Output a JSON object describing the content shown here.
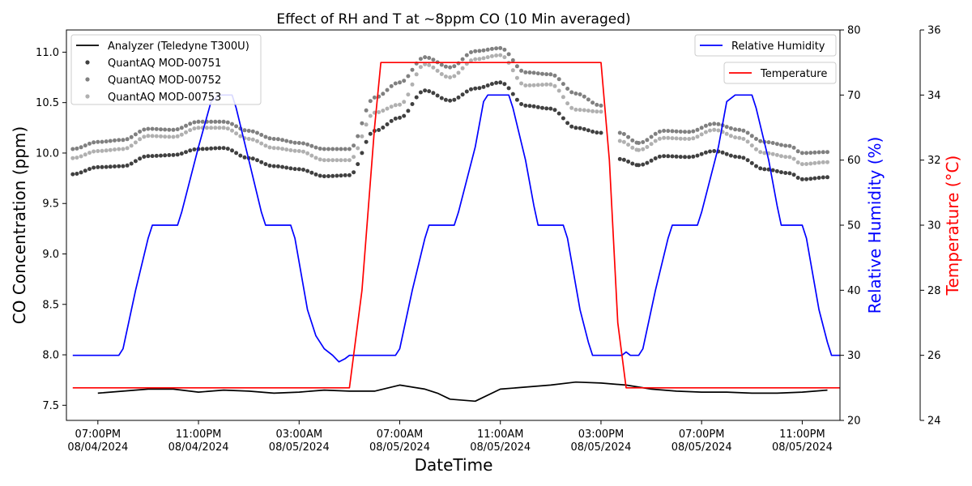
{
  "chart_data": {
    "type": "line",
    "title": "Effect of RH and T at ~8ppm CO (10 Min averaged)",
    "xlabel": "DateTime",
    "ylabel": "CO Concentration (ppm)",
    "y2label": "Relative Humidity (%)",
    "y3label": "Temperature (°C)",
    "xlim": [
      "2024-08-04 17:45",
      "2024-08-06 00:30"
    ],
    "ylim": [
      7.35,
      11.22
    ],
    "y2lim": [
      20,
      80
    ],
    "y3lim": [
      24,
      36
    ],
    "x_ticks": [
      {
        "line1": "07:00PM",
        "line2": "08/04/2024",
        "value": "2024-08-04 19:00"
      },
      {
        "line1": "11:00PM",
        "line2": "08/04/2024",
        "value": "2024-08-04 23:00"
      },
      {
        "line1": "03:00AM",
        "line2": "08/05/2024",
        "value": "2024-08-05 03:00"
      },
      {
        "line1": "07:00AM",
        "line2": "08/05/2024",
        "value": "2024-08-05 07:00"
      },
      {
        "line1": "11:00AM",
        "line2": "08/05/2024",
        "value": "2024-08-05 11:00"
      },
      {
        "line1": "03:00PM",
        "line2": "08/05/2024",
        "value": "2024-08-05 15:00"
      },
      {
        "line1": "07:00PM",
        "line2": "08/05/2024",
        "value": "2024-08-05 19:00"
      },
      {
        "line1": "11:00PM",
        "line2": "08/05/2024",
        "value": "2024-08-05 23:00"
      }
    ],
    "y_ticks": [
      "7.5",
      "8.0",
      "8.5",
      "9.0",
      "9.5",
      "10.0",
      "10.5",
      "11.0"
    ],
    "y2_ticks": [
      "20",
      "30",
      "40",
      "50",
      "60",
      "70",
      "80"
    ],
    "y3_ticks": [
      "24",
      "26",
      "28",
      "30",
      "32",
      "34",
      "36"
    ],
    "grid": false,
    "legend_left": {
      "placement": "upper-left",
      "entries": [
        "Analyzer (Teledyne T300U)",
        "QuantAQ MOD-00751",
        "QuantAQ MOD-00752",
        "QuantAQ MOD-00753"
      ]
    },
    "legend_rh": {
      "placement": "upper-right",
      "entries": [
        "Relative Humidity"
      ]
    },
    "legend_temp": {
      "placement": "upper-right",
      "entries": [
        "Temperature"
      ]
    },
    "series": [
      {
        "name": "Analyzer (Teledyne T300U)",
        "style": "line",
        "axis": "co",
        "color": "#000000",
        "points": [
          [
            "2024-08-04 19:00",
            7.62
          ],
          [
            "2024-08-04 20:00",
            7.64
          ],
          [
            "2024-08-04 21:00",
            7.66
          ],
          [
            "2024-08-04 22:00",
            7.66
          ],
          [
            "2024-08-04 23:00",
            7.63
          ],
          [
            "2024-08-05 00:00",
            7.65
          ],
          [
            "2024-08-05 01:00",
            7.64
          ],
          [
            "2024-08-05 02:00",
            7.62
          ],
          [
            "2024-08-05 03:00",
            7.63
          ],
          [
            "2024-08-05 04:00",
            7.65
          ],
          [
            "2024-08-05 05:00",
            7.64
          ],
          [
            "2024-08-05 06:00",
            7.64
          ],
          [
            "2024-08-05 07:00",
            7.7
          ],
          [
            "2024-08-05 08:00",
            7.66
          ],
          [
            "2024-08-05 08:30",
            7.62
          ],
          [
            "2024-08-05 09:00",
            7.56
          ],
          [
            "2024-08-05 10:00",
            7.54
          ],
          [
            "2024-08-05 11:00",
            7.66
          ],
          [
            "2024-08-05 12:00",
            7.68
          ],
          [
            "2024-08-05 13:00",
            7.7
          ],
          [
            "2024-08-05 14:00",
            7.73
          ],
          [
            "2024-08-05 15:00",
            7.72
          ],
          [
            "2024-08-05 16:00",
            7.7
          ],
          [
            "2024-08-05 17:00",
            7.66
          ],
          [
            "2024-08-05 18:00",
            7.64
          ],
          [
            "2024-08-05 19:00",
            7.63
          ],
          [
            "2024-08-05 20:00",
            7.63
          ],
          [
            "2024-08-05 21:00",
            7.62
          ],
          [
            "2024-08-05 22:00",
            7.62
          ],
          [
            "2024-08-05 23:00",
            7.63
          ],
          [
            "2024-08-06 00:00",
            7.65
          ]
        ]
      },
      {
        "name": "QuantAQ MOD-00751",
        "style": "dots",
        "axis": "co",
        "color": "#404040",
        "points": [
          [
            "2024-08-04 18:00",
            9.79
          ],
          [
            "2024-08-04 19:00",
            9.86
          ],
          [
            "2024-08-04 20:00",
            9.87
          ],
          [
            "2024-08-04 21:00",
            9.97
          ],
          [
            "2024-08-04 22:00",
            9.98
          ],
          [
            "2024-08-04 23:00",
            10.04
          ],
          [
            "2024-08-05 00:00",
            10.05
          ],
          [
            "2024-08-05 01:00",
            9.95
          ],
          [
            "2024-08-05 02:00",
            9.87
          ],
          [
            "2024-08-05 03:00",
            9.84
          ],
          [
            "2024-08-05 04:00",
            9.77
          ],
          [
            "2024-08-05 05:00",
            9.78
          ],
          [
            "2024-08-05 06:00",
            10.22
          ],
          [
            "2024-08-05 07:00",
            10.35
          ],
          [
            "2024-08-05 08:00",
            10.62
          ],
          [
            "2024-08-05 09:00",
            10.52
          ],
          [
            "2024-08-05 10:00",
            10.64
          ],
          [
            "2024-08-05 11:00",
            10.7
          ],
          [
            "2024-08-05 12:00",
            10.47
          ],
          [
            "2024-08-05 13:00",
            10.44
          ],
          [
            "2024-08-05 14:00",
            10.25
          ],
          [
            "2024-08-05 15:00",
            10.2
          ]
        ]
      },
      {
        "name": "QuantAQ MOD-00751 b",
        "style": "dots",
        "axis": "co",
        "color": "#404040",
        "points": [
          [
            "2024-08-05 15:45",
            9.94
          ],
          [
            "2024-08-05 16:30",
            9.88
          ],
          [
            "2024-08-05 17:30",
            9.97
          ],
          [
            "2024-08-05 18:30",
            9.96
          ],
          [
            "2024-08-05 19:30",
            10.02
          ],
          [
            "2024-08-05 20:30",
            9.96
          ],
          [
            "2024-08-05 21:30",
            9.84
          ],
          [
            "2024-08-05 22:30",
            9.8
          ],
          [
            "2024-08-05 23:00",
            9.74
          ],
          [
            "2024-08-06 00:00",
            9.76
          ]
        ]
      },
      {
        "name": "QuantAQ MOD-00752",
        "style": "dots",
        "axis": "co",
        "color": "#808080",
        "points": [
          [
            "2024-08-04 18:00",
            10.04
          ],
          [
            "2024-08-04 19:00",
            10.11
          ],
          [
            "2024-08-04 20:00",
            10.13
          ],
          [
            "2024-08-04 21:00",
            10.24
          ],
          [
            "2024-08-04 22:00",
            10.23
          ],
          [
            "2024-08-04 23:00",
            10.31
          ],
          [
            "2024-08-05 00:00",
            10.31
          ],
          [
            "2024-08-05 01:00",
            10.22
          ],
          [
            "2024-08-05 02:00",
            10.14
          ],
          [
            "2024-08-05 03:00",
            10.1
          ],
          [
            "2024-08-05 04:00",
            10.04
          ],
          [
            "2024-08-05 05:00",
            10.04
          ],
          [
            "2024-08-05 06:00",
            10.55
          ],
          [
            "2024-08-05 07:00",
            10.7
          ],
          [
            "2024-08-05 08:00",
            10.95
          ],
          [
            "2024-08-05 09:00",
            10.85
          ],
          [
            "2024-08-05 10:00",
            11.01
          ],
          [
            "2024-08-05 11:00",
            11.04
          ],
          [
            "2024-08-05 12:00",
            10.8
          ],
          [
            "2024-08-05 13:00",
            10.78
          ],
          [
            "2024-08-05 14:00",
            10.59
          ],
          [
            "2024-08-05 15:00",
            10.47
          ]
        ]
      },
      {
        "name": "QuantAQ MOD-00752 b",
        "style": "dots",
        "axis": "co",
        "color": "#808080",
        "points": [
          [
            "2024-08-05 15:45",
            10.2
          ],
          [
            "2024-08-05 16:30",
            10.1
          ],
          [
            "2024-08-05 17:30",
            10.22
          ],
          [
            "2024-08-05 18:30",
            10.21
          ],
          [
            "2024-08-05 19:30",
            10.29
          ],
          [
            "2024-08-05 20:30",
            10.23
          ],
          [
            "2024-08-05 21:30",
            10.11
          ],
          [
            "2024-08-05 22:30",
            10.07
          ],
          [
            "2024-08-05 23:00",
            10.0
          ],
          [
            "2024-08-06 00:00",
            10.01
          ]
        ]
      },
      {
        "name": "QuantAQ MOD-00753",
        "style": "dots",
        "axis": "co",
        "color": "#b0b0b0",
        "points": [
          [
            "2024-08-04 18:00",
            9.95
          ],
          [
            "2024-08-04 19:00",
            10.02
          ],
          [
            "2024-08-04 20:00",
            10.04
          ],
          [
            "2024-08-04 21:00",
            10.17
          ],
          [
            "2024-08-04 22:00",
            10.16
          ],
          [
            "2024-08-04 23:00",
            10.25
          ],
          [
            "2024-08-05 00:00",
            10.25
          ],
          [
            "2024-08-05 01:00",
            10.14
          ],
          [
            "2024-08-05 02:00",
            10.05
          ],
          [
            "2024-08-05 03:00",
            10.02
          ],
          [
            "2024-08-05 04:00",
            9.93
          ],
          [
            "2024-08-05 05:00",
            9.93
          ],
          [
            "2024-08-05 06:00",
            10.4
          ],
          [
            "2024-08-05 07:00",
            10.48
          ],
          [
            "2024-08-05 08:00",
            10.88
          ],
          [
            "2024-08-05 09:00",
            10.75
          ],
          [
            "2024-08-05 10:00",
            10.93
          ],
          [
            "2024-08-05 11:00",
            10.97
          ],
          [
            "2024-08-05 12:00",
            10.67
          ],
          [
            "2024-08-05 13:00",
            10.68
          ],
          [
            "2024-08-05 14:00",
            10.43
          ],
          [
            "2024-08-05 15:00",
            10.41
          ]
        ]
      },
      {
        "name": "QuantAQ MOD-00753 b",
        "style": "dots",
        "axis": "co",
        "color": "#b0b0b0",
        "points": [
          [
            "2024-08-05 15:45",
            10.12
          ],
          [
            "2024-08-05 16:30",
            10.03
          ],
          [
            "2024-08-05 17:30",
            10.15
          ],
          [
            "2024-08-05 18:30",
            10.14
          ],
          [
            "2024-08-05 19:30",
            10.23
          ],
          [
            "2024-08-05 20:30",
            10.15
          ],
          [
            "2024-08-05 21:30",
            10.0
          ],
          [
            "2024-08-05 22:30",
            9.96
          ],
          [
            "2024-08-05 23:00",
            9.89
          ],
          [
            "2024-08-06 00:00",
            9.91
          ]
        ]
      },
      {
        "name": "Relative Humidity",
        "style": "line",
        "axis": "rh",
        "color": "#0000ff",
        "points": [
          [
            "2024-08-04 18:00",
            30
          ],
          [
            "2024-08-04 19:50",
            30
          ],
          [
            "2024-08-04 20:00",
            31
          ],
          [
            "2024-08-04 20:30",
            40
          ],
          [
            "2024-08-04 21:00",
            48
          ],
          [
            "2024-08-04 21:10",
            50
          ],
          [
            "2024-08-04 22:10",
            50
          ],
          [
            "2024-08-04 22:20",
            52
          ],
          [
            "2024-08-04 23:00",
            62
          ],
          [
            "2024-08-04 23:30",
            69
          ],
          [
            "2024-08-04 23:50",
            70
          ],
          [
            "2024-08-05 00:20",
            70
          ],
          [
            "2024-08-05 00:30",
            68
          ],
          [
            "2024-08-05 01:00",
            60
          ],
          [
            "2024-08-05 01:30",
            52
          ],
          [
            "2024-08-05 01:40",
            50
          ],
          [
            "2024-08-05 02:40",
            50
          ],
          [
            "2024-08-05 02:50",
            48
          ],
          [
            "2024-08-05 03:20",
            37
          ],
          [
            "2024-08-05 03:40",
            33
          ],
          [
            "2024-08-05 04:00",
            31
          ],
          [
            "2024-08-05 04:20",
            30
          ],
          [
            "2024-08-05 04:35",
            29
          ],
          [
            "2024-08-05 04:50",
            29.5
          ],
          [
            "2024-08-05 05:00",
            30
          ],
          [
            "2024-08-05 05:30",
            30
          ],
          [
            "2024-08-05 06:50",
            30
          ],
          [
            "2024-08-05 07:00",
            31
          ],
          [
            "2024-08-05 07:30",
            40
          ],
          [
            "2024-08-05 08:00",
            48
          ],
          [
            "2024-08-05 08:10",
            50
          ],
          [
            "2024-08-05 09:10",
            50
          ],
          [
            "2024-08-05 09:20",
            52
          ],
          [
            "2024-08-05 10:00",
            62
          ],
          [
            "2024-08-05 10:20",
            69
          ],
          [
            "2024-08-05 10:30",
            70
          ],
          [
            "2024-08-05 11:20",
            70
          ],
          [
            "2024-08-05 11:30",
            68
          ],
          [
            "2024-08-05 12:00",
            60
          ],
          [
            "2024-08-05 12:20",
            53
          ],
          [
            "2024-08-05 12:30",
            50
          ],
          [
            "2024-08-05 13:30",
            50
          ],
          [
            "2024-08-05 13:40",
            48
          ],
          [
            "2024-08-05 14:10",
            37
          ],
          [
            "2024-08-05 14:30",
            32
          ],
          [
            "2024-08-05 14:40",
            30
          ],
          [
            "2024-08-05 15:50",
            30
          ],
          [
            "2024-08-05 16:00",
            30.5
          ],
          [
            "2024-08-05 16:10",
            30
          ],
          [
            "2024-08-05 16:30",
            30
          ],
          [
            "2024-08-05 16:40",
            31
          ],
          [
            "2024-08-05 17:10",
            40
          ],
          [
            "2024-08-05 17:40",
            48
          ],
          [
            "2024-08-05 17:50",
            50
          ],
          [
            "2024-08-05 18:50",
            50
          ],
          [
            "2024-08-05 19:00",
            52
          ],
          [
            "2024-08-05 19:40",
            62
          ],
          [
            "2024-08-05 20:00",
            69
          ],
          [
            "2024-08-05 20:20",
            70
          ],
          [
            "2024-08-05 21:00",
            70
          ],
          [
            "2024-08-05 21:10",
            68
          ],
          [
            "2024-08-05 21:40",
            60
          ],
          [
            "2024-08-05 22:00",
            53
          ],
          [
            "2024-08-05 22:10",
            50
          ],
          [
            "2024-08-05 23:00",
            50
          ],
          [
            "2024-08-05 23:10",
            48
          ],
          [
            "2024-08-05 23:40",
            37
          ],
          [
            "2024-08-06 00:00",
            32
          ],
          [
            "2024-08-06 00:10",
            30
          ],
          [
            "2024-08-06 00:30",
            30
          ]
        ]
      },
      {
        "name": "Temperature",
        "style": "line",
        "axis": "temp",
        "color": "#ff0000",
        "points": [
          [
            "2024-08-04 18:00",
            25
          ],
          [
            "2024-08-05 05:00",
            25
          ],
          [
            "2024-08-05 05:30",
            28
          ],
          [
            "2024-08-05 06:00",
            33
          ],
          [
            "2024-08-05 06:15",
            35
          ],
          [
            "2024-08-05 06:30",
            35
          ],
          [
            "2024-08-05 15:00",
            35
          ],
          [
            "2024-08-05 15:20",
            32
          ],
          [
            "2024-08-05 15:40",
            27
          ],
          [
            "2024-08-05 16:00",
            25
          ],
          [
            "2024-08-06 00:30",
            25
          ]
        ]
      }
    ]
  }
}
